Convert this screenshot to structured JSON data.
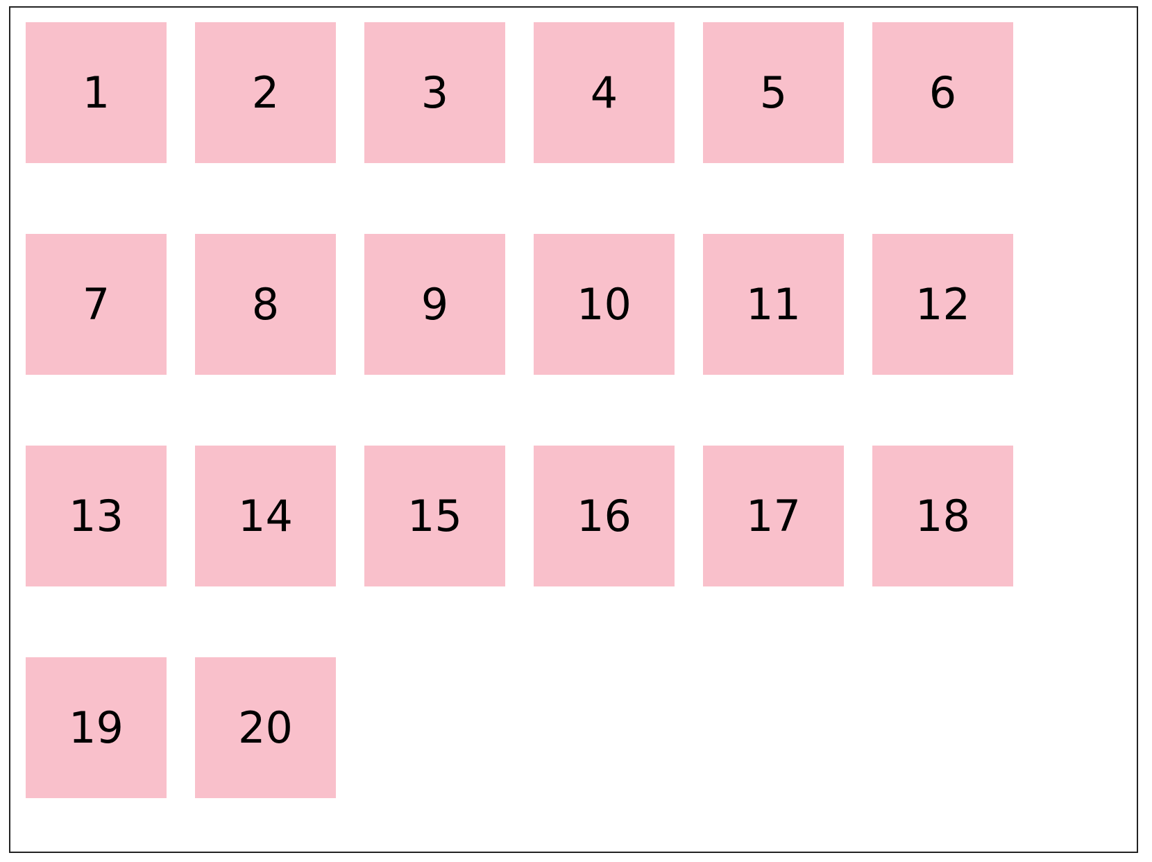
{
  "tile_color": "#f9c0cb",
  "items": [
    {
      "label": "1"
    },
    {
      "label": "2"
    },
    {
      "label": "3"
    },
    {
      "label": "4"
    },
    {
      "label": "5"
    },
    {
      "label": "6"
    },
    {
      "label": "7"
    },
    {
      "label": "8"
    },
    {
      "label": "9"
    },
    {
      "label": "10"
    },
    {
      "label": "11"
    },
    {
      "label": "12"
    },
    {
      "label": "13"
    },
    {
      "label": "14"
    },
    {
      "label": "15"
    },
    {
      "label": "16"
    },
    {
      "label": "17"
    },
    {
      "label": "18"
    },
    {
      "label": "19"
    },
    {
      "label": "20"
    }
  ]
}
